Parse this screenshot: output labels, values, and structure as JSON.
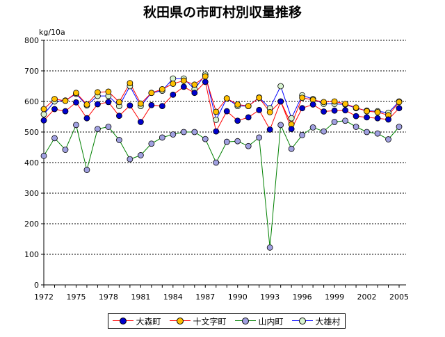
{
  "chart_data": {
    "type": "line",
    "title": "秋田県の市町村別収量推移",
    "ylabel": "kg/10a",
    "xlabel": "",
    "ylim": [
      0,
      800
    ],
    "yticks": [
      0,
      100,
      200,
      300,
      400,
      500,
      600,
      700,
      800
    ],
    "xlim": [
      1972,
      2005
    ],
    "xticks": [
      1972,
      1975,
      1978,
      1981,
      1984,
      1987,
      1990,
      1993,
      1996,
      1999,
      2002,
      2005
    ],
    "grid": true,
    "legend_position": "bottom",
    "x": [
      1972,
      1973,
      1974,
      1975,
      1976,
      1977,
      1978,
      1979,
      1980,
      1981,
      1982,
      1983,
      1984,
      1985,
      1986,
      1987,
      1988,
      1989,
      1990,
      1991,
      1992,
      1993,
      1994,
      1995,
      1996,
      1997,
      1998,
      1999,
      2000,
      2001,
      2002,
      2003,
      2004,
      2005
    ],
    "series": [
      {
        "name": "大森町",
        "line_color": "#ff0000",
        "marker_color": "#0000cc",
        "values": [
          538,
          575,
          568,
          597,
          545,
          591,
          598,
          553,
          587,
          533,
          588,
          585,
          622,
          648,
          628,
          664,
          502,
          568,
          537,
          548,
          572,
          508,
          600,
          510,
          578,
          590,
          567,
          570,
          571,
          552,
          548,
          545,
          541,
          578
        ]
      },
      {
        "name": "十文字町",
        "line_color": "#ff0000",
        "marker_color": "#ffc000",
        "values": [
          575,
          608,
          602,
          628,
          590,
          630,
          632,
          598,
          660,
          593,
          628,
          640,
          658,
          668,
          655,
          682,
          566,
          610,
          590,
          585,
          612,
          565,
          600,
          525,
          612,
          605,
          598,
          600,
          592,
          580,
          568,
          565,
          555,
          598
        ]
      },
      {
        "name": "山内町",
        "line_color": "#008000",
        "marker_color": "#a0a0e0",
        "values": [
          422,
          480,
          442,
          523,
          376,
          510,
          517,
          474,
          411,
          424,
          462,
          482,
          492,
          500,
          500,
          477,
          400,
          468,
          470,
          454,
          482,
          122,
          523,
          445,
          490,
          515,
          502,
          533,
          537,
          517,
          500,
          495,
          476,
          517
        ]
      },
      {
        "name": "大雄村",
        "line_color": "#0000ff",
        "marker_color": "#d8f4d0",
        "values": [
          558,
          600,
          603,
          625,
          587,
          618,
          618,
          585,
          650,
          585,
          628,
          635,
          675,
          675,
          640,
          688,
          540,
          610,
          585,
          585,
          613,
          578,
          650,
          545,
          620,
          608,
          592,
          592,
          590,
          578,
          570,
          568,
          563,
          600
        ]
      }
    ]
  }
}
